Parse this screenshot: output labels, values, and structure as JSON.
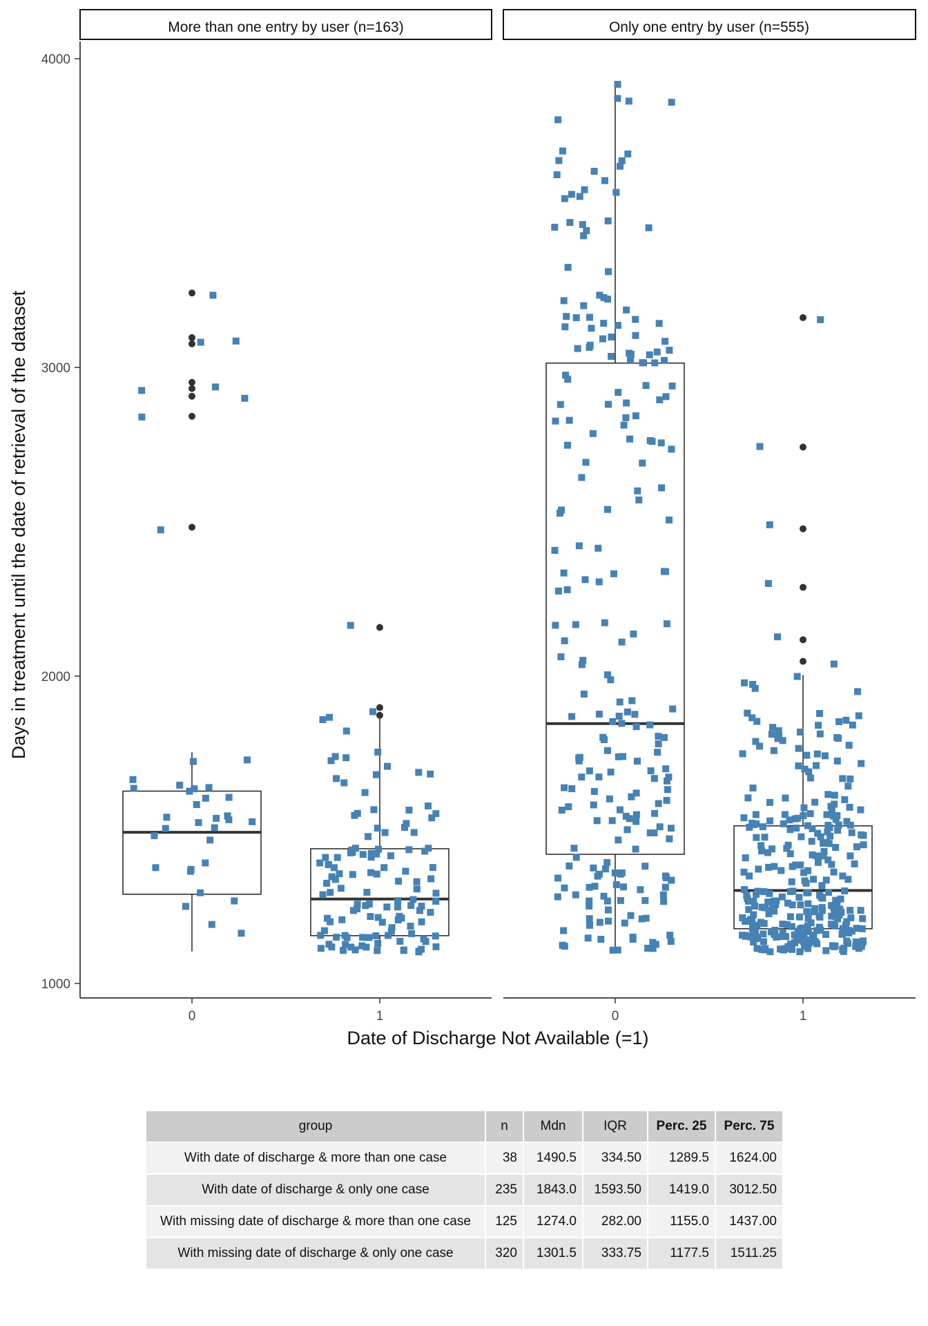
{
  "chart_data": {
    "type": "boxplot",
    "ylabel": "Days in treatment until the date of retrieval of the dataset",
    "xlabel": "Date of Discharge Not Available (=1)",
    "ylim": [
      960,
      4100
    ],
    "yticks": [
      1000,
      2000,
      3000,
      4000
    ],
    "grid": false,
    "colors": {
      "points": "#4682b4",
      "box_line": "#333333",
      "outlier": "#333333"
    },
    "facets": [
      {
        "title": "More than one entry by user (n=163)",
        "categories": [
          "0",
          "1"
        ],
        "boxes": [
          {
            "x": "0",
            "q1": 1289.5,
            "median": 1490.5,
            "q3": 1624.0,
            "whisker_low": 1104,
            "whisker_high": 1750,
            "outliers": [
              3240,
              3095,
              3075,
              2950,
              2930,
              2905,
              2840,
              2480
            ]
          },
          {
            "x": "1",
            "q1": 1155.0,
            "median": 1274.0,
            "q3": 1437.0,
            "whisker_low": 1100,
            "whisker_high": 1865,
            "outliers": [
              2155,
              1895,
              1870
            ]
          }
        ]
      },
      {
        "title": "Only one entry by user (n=555)",
        "categories": [
          "0",
          "1"
        ],
        "boxes": [
          {
            "x": "0",
            "q1": 1419.0,
            "median": 1843.0,
            "q3": 3012.5,
            "whisker_low": 1100,
            "whisker_high": 3920,
            "outliers": []
          },
          {
            "x": "1",
            "q1": 1177.5,
            "median": 1301.5,
            "q3": 1511.25,
            "whisker_low": 1100,
            "whisker_high": 2000,
            "outliers": [
              3160,
              2740,
              2475,
              2285,
              2115,
              2045
            ]
          }
        ]
      }
    ]
  },
  "table": {
    "headers": [
      "group",
      "n",
      "Mdn",
      "IQR",
      "Perc. 25",
      "Perc. 75"
    ],
    "rows": [
      [
        "With date of discharge & more than one case",
        "38",
        "1490.5",
        "334.50",
        "1289.5",
        "1624.00"
      ],
      [
        "With date of discharge & only one case",
        "235",
        "1843.0",
        "1593.50",
        "1419.0",
        "3012.50"
      ],
      [
        "With missing date of discharge & more than one case",
        "125",
        "1274.0",
        "282.00",
        "1155.0",
        "1437.00"
      ],
      [
        "With missing date of discharge & only one case",
        "320",
        "1301.5",
        "333.75",
        "1177.5",
        "1511.25"
      ]
    ]
  }
}
